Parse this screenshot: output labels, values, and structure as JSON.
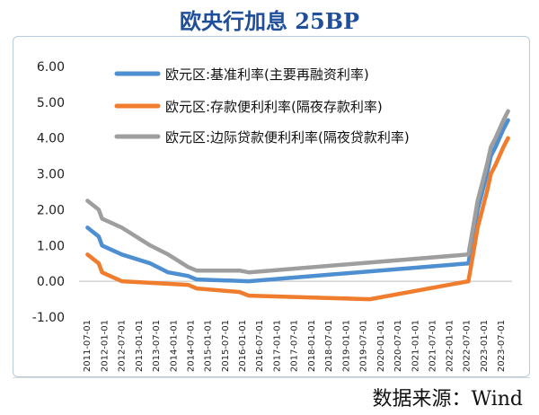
{
  "page": {
    "title": "欧央行加息 25BP",
    "source": "数据来源：Wind"
  },
  "chart_data": {
    "type": "line",
    "title": "欧央行加息 25BP",
    "xlabel": "",
    "ylabel": "",
    "ylim": [
      -1.0,
      6.0
    ],
    "yticks": [
      "6.00",
      "5.00",
      "4.00",
      "3.00",
      "2.00",
      "1.00",
      "0.00",
      "-1.00"
    ],
    "x_tick_labels": [
      "2011-07-01",
      "2012-01-01",
      "2012-07-01",
      "2013-01-01",
      "2013-07-01",
      "2014-01-01",
      "2014-07-01",
      "2015-01-01",
      "2015-07-01",
      "2016-01-01",
      "2016-07-01",
      "2017-01-01",
      "2017-07-01",
      "2018-01-01",
      "2018-07-01",
      "2019-01-01",
      "2019-07-01",
      "2020-01-01",
      "2020-07-01",
      "2021-01-01",
      "2021-07-01",
      "2022-01-01",
      "2022-07-01",
      "2023-01-01",
      "2023-07-01"
    ],
    "legend_position": "top-left",
    "grid": false,
    "series": [
      {
        "name": "欧元区:基准利率(主要再融资利率)",
        "color": "#4e8fd2",
        "points": [
          [
            "2011-07-13",
            1.5
          ],
          [
            "2011-11-09",
            1.25
          ],
          [
            "2011-12-14",
            1.0
          ],
          [
            "2012-07-11",
            0.75
          ],
          [
            "2013-05-08",
            0.5
          ],
          [
            "2013-11-13",
            0.25
          ],
          [
            "2014-06-11",
            0.15
          ],
          [
            "2014-09-10",
            0.05
          ],
          [
            "2016-03-16",
            0.0
          ],
          [
            "2022-07-27",
            0.5
          ],
          [
            "2022-09-14",
            1.25
          ],
          [
            "2022-11-02",
            2.0
          ],
          [
            "2022-12-21",
            2.5
          ],
          [
            "2023-02-08",
            3.0
          ],
          [
            "2023-03-22",
            3.5
          ],
          [
            "2023-05-10",
            3.75
          ],
          [
            "2023-06-21",
            4.0
          ],
          [
            "2023-08-02",
            4.25
          ],
          [
            "2023-09-20",
            4.5
          ]
        ]
      },
      {
        "name": "欧元区:存款便利利率(隔夜存款利率)",
        "color": "#f07d2e",
        "points": [
          [
            "2011-07-13",
            0.75
          ],
          [
            "2011-11-09",
            0.5
          ],
          [
            "2011-12-14",
            0.25
          ],
          [
            "2012-07-11",
            0.0
          ],
          [
            "2014-06-11",
            -0.1
          ],
          [
            "2014-09-10",
            -0.2
          ],
          [
            "2015-12-09",
            -0.3
          ],
          [
            "2016-03-16",
            -0.4
          ],
          [
            "2019-09-18",
            -0.5
          ],
          [
            "2022-07-27",
            0.0
          ],
          [
            "2022-09-14",
            0.75
          ],
          [
            "2022-11-02",
            1.5
          ],
          [
            "2022-12-21",
            2.0
          ],
          [
            "2023-02-08",
            2.5
          ],
          [
            "2023-03-22",
            3.0
          ],
          [
            "2023-05-10",
            3.25
          ],
          [
            "2023-06-21",
            3.5
          ],
          [
            "2023-08-02",
            3.75
          ],
          [
            "2023-09-20",
            4.0
          ]
        ]
      },
      {
        "name": "欧元区:边际贷款便利利率(隔夜贷款利率)",
        "color": "#9e9e9e",
        "points": [
          [
            "2011-07-13",
            2.25
          ],
          [
            "2011-11-09",
            2.0
          ],
          [
            "2011-12-14",
            1.75
          ],
          [
            "2012-07-11",
            1.5
          ],
          [
            "2013-05-08",
            1.0
          ],
          [
            "2013-11-13",
            0.75
          ],
          [
            "2014-06-11",
            0.4
          ],
          [
            "2014-09-10",
            0.3
          ],
          [
            "2015-12-09",
            0.3
          ],
          [
            "2016-03-16",
            0.25
          ],
          [
            "2022-07-27",
            0.75
          ],
          [
            "2022-09-14",
            1.5
          ],
          [
            "2022-11-02",
            2.25
          ],
          [
            "2022-12-21",
            2.75
          ],
          [
            "2023-02-08",
            3.25
          ],
          [
            "2023-03-22",
            3.75
          ],
          [
            "2023-05-10",
            4.0
          ],
          [
            "2023-06-21",
            4.25
          ],
          [
            "2023-08-02",
            4.5
          ],
          [
            "2023-09-20",
            4.75
          ]
        ]
      }
    ]
  }
}
